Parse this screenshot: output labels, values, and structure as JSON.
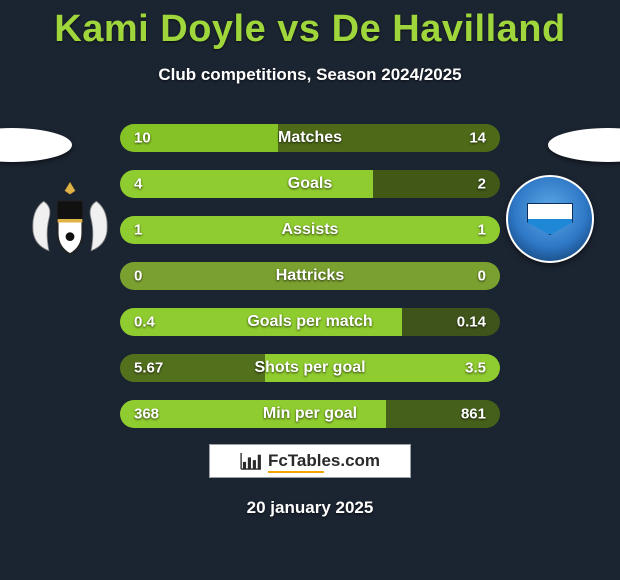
{
  "title": "Kami Doyle vs De Havilland",
  "subtitle": "Club competitions, Season 2024/2025",
  "date": "20 january 2025",
  "logo_text": "FcTables.com",
  "background_color": "#1b2431",
  "title_color": "#9fd63c",
  "text_color": "#ffffff",
  "fctables_underline": "#f5a500",
  "bars": [
    {
      "label": "Matches",
      "left": "10",
      "right": "14",
      "left_color": "#85c225",
      "right_color": "#4e6a18"
    },
    {
      "label": "Goals",
      "left": "4",
      "right": "2",
      "left_color": "#8fcc2f",
      "right_color": "#415817"
    },
    {
      "label": "Assists",
      "left": "1",
      "right": "1",
      "left_color": "#8fcc2f",
      "right_color": "#8fcc2f"
    },
    {
      "label": "Hattricks",
      "left": "0",
      "right": "0",
      "left_color": "#7aa02f",
      "right_color": "#7aa02f"
    },
    {
      "label": "Goals per match",
      "left": "0.4",
      "right": "0.14",
      "left_color": "#8fcc2f",
      "right_color": "#3f541a"
    },
    {
      "label": "Shots per goal",
      "left": "5.67",
      "right": "3.5",
      "left_color": "#53701d",
      "right_color": "#8fcc2f"
    },
    {
      "label": "Min per goal",
      "left": "368",
      "right": "861",
      "left_color": "#8fcc2f",
      "right_color": "#45601a"
    }
  ],
  "bar_proportions": [
    {
      "l": 41.7,
      "r": 58.3
    },
    {
      "l": 66.7,
      "r": 33.3
    },
    {
      "l": 50.0,
      "r": 50.0
    },
    {
      "l": 50.0,
      "r": 50.0
    },
    {
      "l": 74.1,
      "r": 25.9
    },
    {
      "l": 38.2,
      "r": 61.8
    },
    {
      "l": 70.1,
      "r": 29.9
    }
  ],
  "crest_left": {
    "bg": "#ffffff",
    "accent": "#111111",
    "gold": "#e0b348"
  },
  "crest_right": {
    "outer_grad_top": "#5ea8e8",
    "outer_grad_mid": "#2e78c6",
    "outer_grad_dark": "#0b2d57",
    "border": "#ffffff"
  }
}
